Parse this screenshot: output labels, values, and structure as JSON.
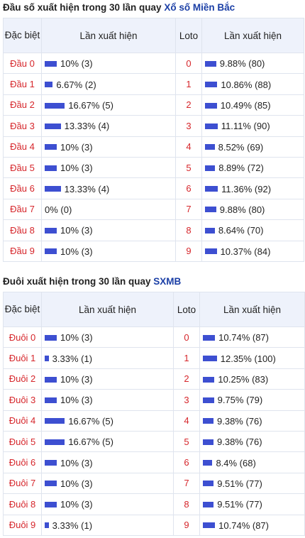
{
  "section1": {
    "title_prefix": "Đầu số xuất hiện trong 30 lần quay",
    "title_link": "Xổ số Miền Bắc",
    "headers": {
      "col1": "Đặc biệt",
      "col2": "Lần xuất hiện",
      "col3": "Loto",
      "col4": "Lần xuất hiện"
    },
    "rows": [
      {
        "label": "Đầu 0",
        "special_pct": 10,
        "special_text": "10% (3)",
        "loto": "0",
        "loto_pct": 9.88,
        "loto_text": "9.88% (80)"
      },
      {
        "label": "Đầu 1",
        "special_pct": 6.67,
        "special_text": "6.67% (2)",
        "loto": "1",
        "loto_pct": 10.86,
        "loto_text": "10.86% (88)"
      },
      {
        "label": "Đầu 2",
        "special_pct": 16.67,
        "special_text": "16.67% (5)",
        "loto": "2",
        "loto_pct": 10.49,
        "loto_text": "10.49% (85)"
      },
      {
        "label": "Đầu 3",
        "special_pct": 13.33,
        "special_text": "13.33% (4)",
        "loto": "3",
        "loto_pct": 11.11,
        "loto_text": "11.11% (90)"
      },
      {
        "label": "Đầu 4",
        "special_pct": 10,
        "special_text": "10% (3)",
        "loto": "4",
        "loto_pct": 8.52,
        "loto_text": "8.52% (69)"
      },
      {
        "label": "Đầu 5",
        "special_pct": 10,
        "special_text": "10% (3)",
        "loto": "5",
        "loto_pct": 8.89,
        "loto_text": "8.89% (72)"
      },
      {
        "label": "Đầu 6",
        "special_pct": 13.33,
        "special_text": "13.33% (4)",
        "loto": "6",
        "loto_pct": 11.36,
        "loto_text": "11.36% (92)"
      },
      {
        "label": "Đầu 7",
        "special_pct": 0,
        "special_text": "0% (0)",
        "loto": "7",
        "loto_pct": 9.88,
        "loto_text": "9.88% (80)"
      },
      {
        "label": "Đầu 8",
        "special_pct": 10,
        "special_text": "10% (3)",
        "loto": "8",
        "loto_pct": 8.64,
        "loto_text": "8.64% (70)"
      },
      {
        "label": "Đầu 9",
        "special_pct": 10,
        "special_text": "10% (3)",
        "loto": "9",
        "loto_pct": 10.37,
        "loto_text": "10.37% (84)"
      }
    ]
  },
  "section2": {
    "title_prefix": "Đuôi xuất hiện trong 30 lần quay",
    "title_link": "SXMB",
    "headers": {
      "col1": "Đặc biệt",
      "col2": "Lần xuất hiện",
      "col3": "Loto",
      "col4": "Lần xuất hiện"
    },
    "rows": [
      {
        "label": "Đuôi 0",
        "special_pct": 10,
        "special_text": "10% (3)",
        "loto": "0",
        "loto_pct": 10.74,
        "loto_text": "10.74% (87)"
      },
      {
        "label": "Đuôi 1",
        "special_pct": 3.33,
        "special_text": "3.33% (1)",
        "loto": "1",
        "loto_pct": 12.35,
        "loto_text": "12.35% (100)"
      },
      {
        "label": "Đuôi 2",
        "special_pct": 10,
        "special_text": "10% (3)",
        "loto": "2",
        "loto_pct": 10.25,
        "loto_text": "10.25% (83)"
      },
      {
        "label": "Đuôi 3",
        "special_pct": 10,
        "special_text": "10% (3)",
        "loto": "3",
        "loto_pct": 9.75,
        "loto_text": "9.75% (79)"
      },
      {
        "label": "Đuôi 4",
        "special_pct": 16.67,
        "special_text": "16.67% (5)",
        "loto": "4",
        "loto_pct": 9.38,
        "loto_text": "9.38% (76)"
      },
      {
        "label": "Đuôi 5",
        "special_pct": 16.67,
        "special_text": "16.67% (5)",
        "loto": "5",
        "loto_pct": 9.38,
        "loto_text": "9.38% (76)"
      },
      {
        "label": "Đuôi 6",
        "special_pct": 10,
        "special_text": "10% (3)",
        "loto": "6",
        "loto_pct": 8.4,
        "loto_text": "8.4% (68)"
      },
      {
        "label": "Đuôi 7",
        "special_pct": 10,
        "special_text": "10% (3)",
        "loto": "7",
        "loto_pct": 9.51,
        "loto_text": "9.51% (77)"
      },
      {
        "label": "Đuôi 8",
        "special_pct": 10,
        "special_text": "10% (3)",
        "loto": "8",
        "loto_pct": 9.51,
        "loto_text": "9.51% (77)"
      },
      {
        "label": "Đuôi 9",
        "special_pct": 3.33,
        "special_text": "3.33% (1)",
        "loto": "9",
        "loto_pct": 10.74,
        "loto_text": "10.74% (87)"
      }
    ]
  },
  "colors": {
    "bar": "#3d4fd1",
    "label_red": "#d6262b",
    "link_blue": "#1b3fa6",
    "header_bg": "#eef2fb"
  }
}
